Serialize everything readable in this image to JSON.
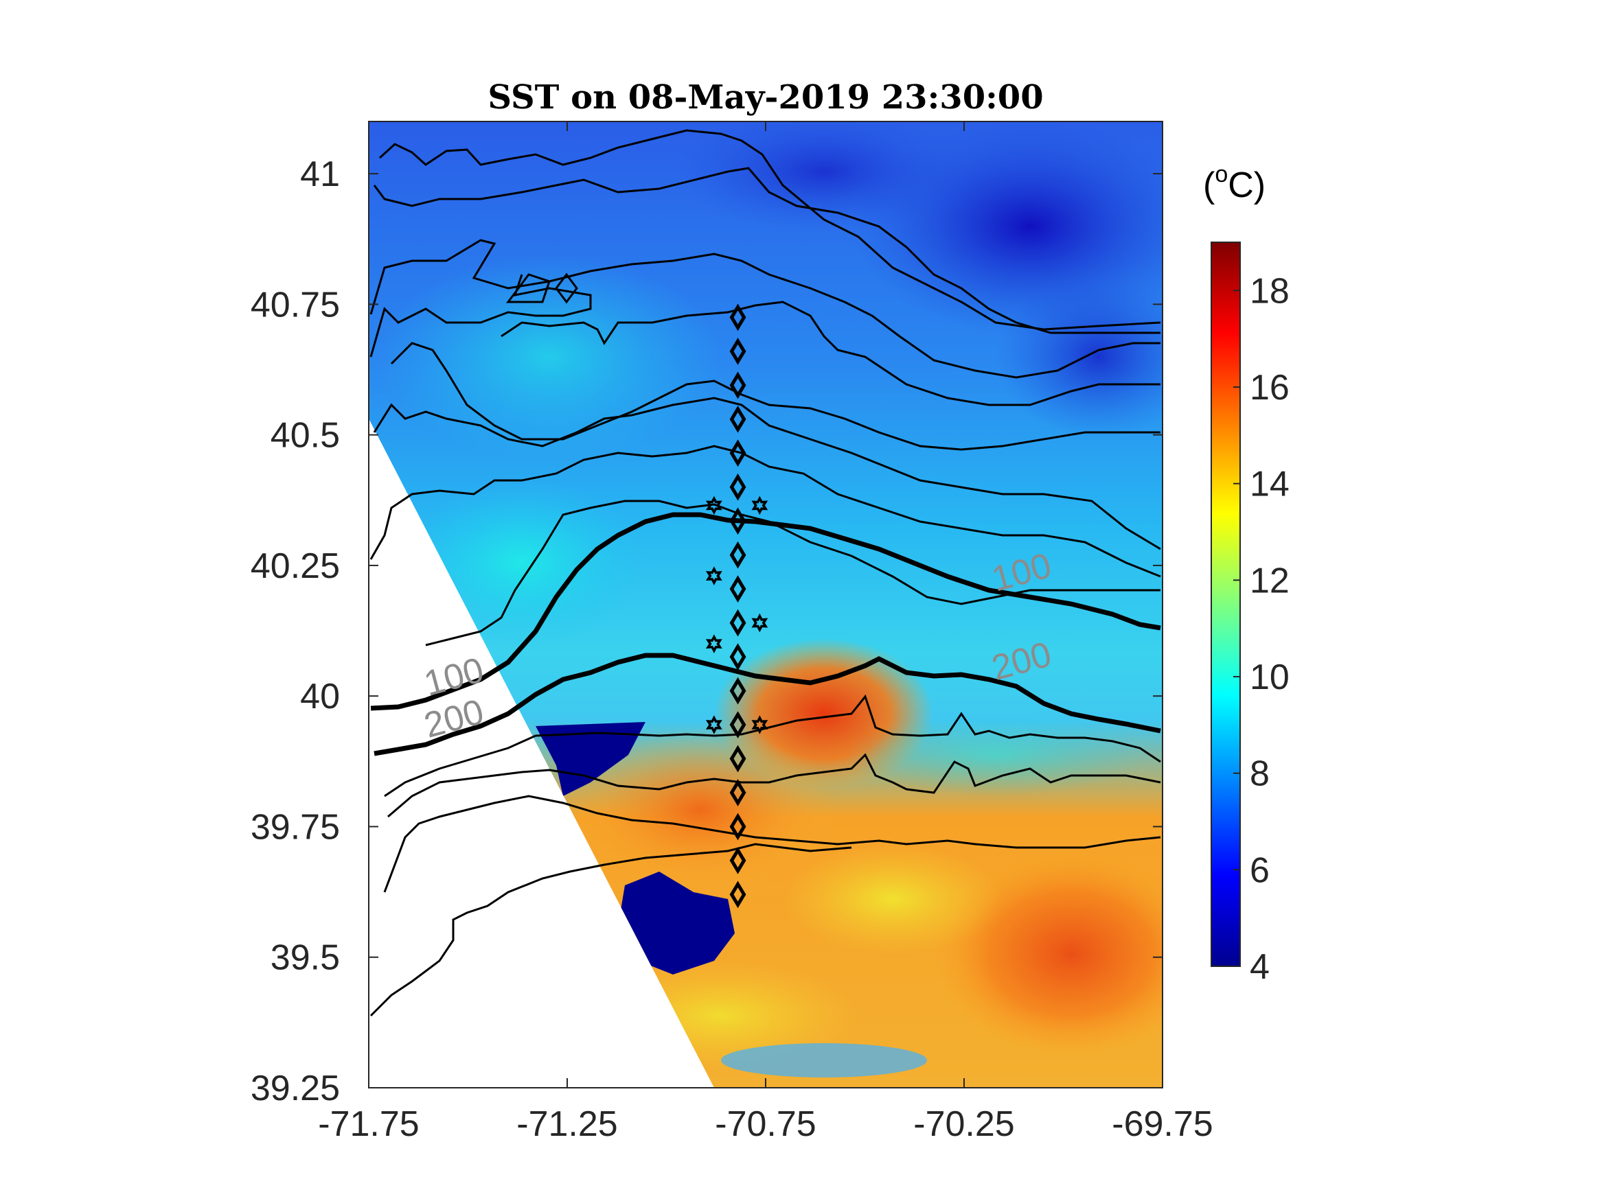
{
  "chart_data": {
    "type": "heatmap",
    "title": "SST on 08-May-2019 23:30:00",
    "xlabel": "",
    "ylabel": "",
    "xlim": [
      -71.75,
      -69.75
    ],
    "ylim": [
      39.25,
      41.1
    ],
    "x_ticks": [
      "-71.75",
      "-71.25",
      "-70.75",
      "-70.25",
      "-69.75"
    ],
    "y_ticks": [
      "39.25",
      "39.5",
      "39.75",
      "40",
      "40.25",
      "40.5",
      "40.75",
      "41"
    ],
    "colorbar": {
      "unit_label": "(°C)",
      "unit_base": "(",
      "unit_super": "o",
      "unit_rest": "C)",
      "range": [
        4,
        19
      ],
      "ticks": [
        "4",
        "6",
        "8",
        "10",
        "12",
        "14",
        "16",
        "18"
      ],
      "colormap": "jet"
    },
    "isobath_labels": [
      {
        "text": "100",
        "lon": -71.6,
        "lat": 40.0
      },
      {
        "text": "200",
        "lon": -71.6,
        "lat": 39.92
      },
      {
        "text": "100",
        "lon": -70.17,
        "lat": 40.2
      },
      {
        "text": "200",
        "lon": -70.17,
        "lat": 40.03
      }
    ],
    "stations_diamond": {
      "lon": -70.82,
      "lat": [
        40.725,
        40.66,
        40.595,
        40.53,
        40.465,
        40.4,
        40.335,
        40.27,
        40.205,
        40.14,
        40.075,
        40.01,
        39.945,
        39.88,
        39.815,
        39.75,
        39.685,
        39.62
      ]
    },
    "stations_star": [
      {
        "lon": -70.88,
        "lat": 40.365
      },
      {
        "lon": -70.765,
        "lat": 40.365
      },
      {
        "lon": -70.88,
        "lat": 40.23
      },
      {
        "lon": -70.765,
        "lat": 40.14
      },
      {
        "lon": -70.88,
        "lat": 40.1
      },
      {
        "lon": -70.88,
        "lat": 39.945
      },
      {
        "lon": -70.765,
        "lat": 39.945
      }
    ]
  }
}
